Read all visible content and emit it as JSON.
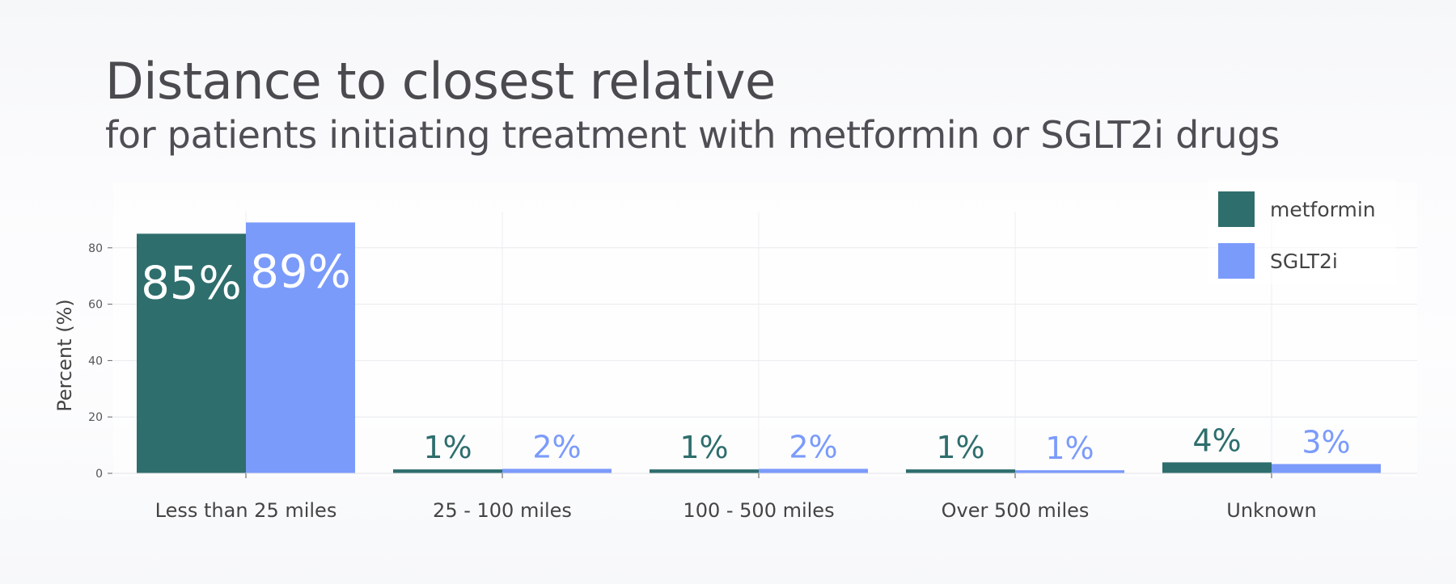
{
  "chart_data": {
    "type": "bar",
    "title": "Distance to closest relative",
    "subtitle": "for patients initiating treatment with metformin or SGLT2i drugs",
    "xlabel": "",
    "ylabel": "Percent (%)",
    "ylim": [
      0,
      93
    ],
    "yticks": [
      0,
      20,
      40,
      60,
      80
    ],
    "grid": true,
    "legend_position": "top-right",
    "categories": [
      "Less than 25 miles",
      "25 - 100 miles",
      "100 - 500 miles",
      "Over 500 miles",
      "Unknown"
    ],
    "series": [
      {
        "name": "metformin",
        "color": "#2e6e6d",
        "values": [
          85,
          1.4,
          1.4,
          1.4,
          3.9
        ],
        "labels": [
          "85%",
          "1%",
          "1%",
          "1%",
          "4%"
        ]
      },
      {
        "name": "SGLT2i",
        "color": "#7b9bfb",
        "values": [
          89,
          1.6,
          1.6,
          1.1,
          3.3
        ],
        "labels": [
          "89%",
          "2%",
          "2%",
          "1%",
          "3%"
        ]
      }
    ]
  }
}
